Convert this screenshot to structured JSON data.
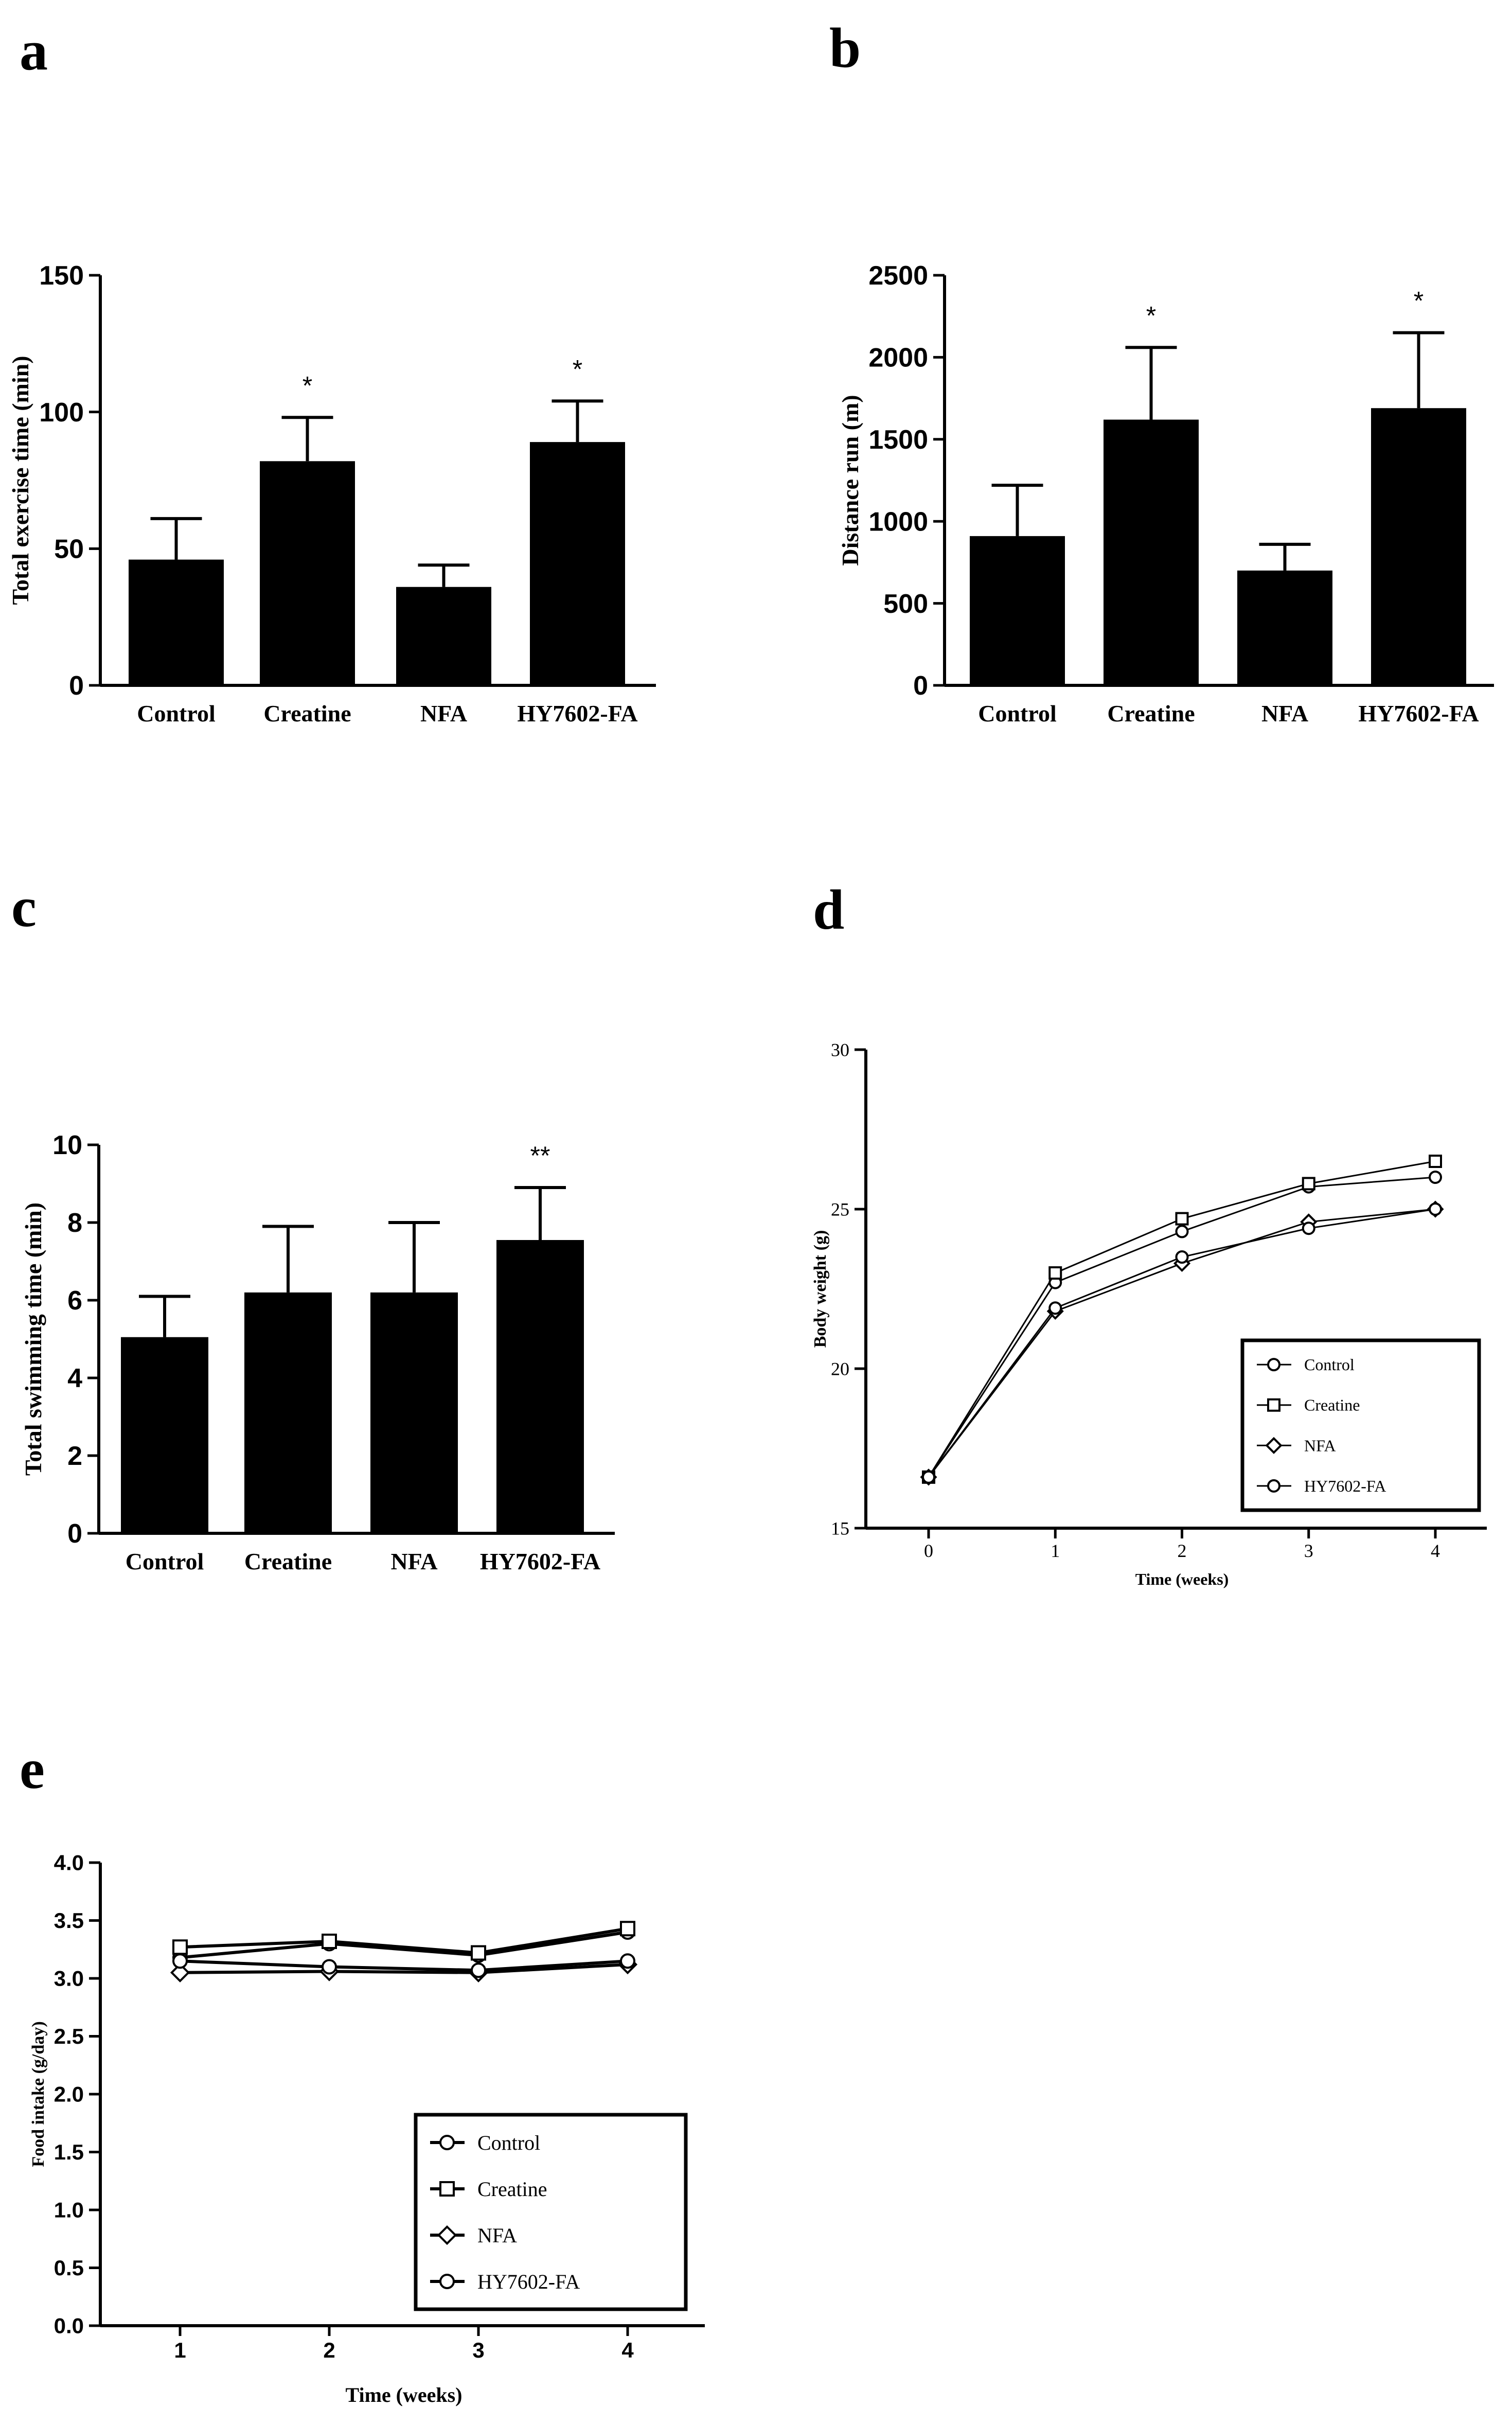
{
  "figure": {
    "panels": [
      "a",
      "b",
      "c",
      "d",
      "e"
    ]
  },
  "chart_data": [
    {
      "id": "a",
      "panel_label": "a",
      "type": "bar",
      "title": "",
      "xlabel": "",
      "ylabel": "Total exercise time (min)",
      "categories": [
        "Control",
        "Creatine",
        "NFA",
        "HY7602-FA"
      ],
      "values": [
        46,
        82,
        36,
        89
      ],
      "errors": [
        15,
        16,
        8,
        15
      ],
      "significance": [
        "",
        "*",
        "",
        "*"
      ],
      "ylim": [
        0,
        150
      ],
      "yticks": [
        "0",
        "50",
        "100",
        "150"
      ]
    },
    {
      "id": "b",
      "panel_label": "b",
      "type": "bar",
      "title": "",
      "xlabel": "",
      "ylabel": "Distance run (m)",
      "categories": [
        "Control",
        "Creatine",
        "NFA",
        "HY7602-FA"
      ],
      "values": [
        910,
        1620,
        700,
        1690
      ],
      "errors": [
        310,
        440,
        160,
        460
      ],
      "significance": [
        "",
        "*",
        "",
        "*"
      ],
      "ylim": [
        0,
        2500
      ],
      "yticks": [
        "0",
        "500",
        "1000",
        "1500",
        "2000",
        "2500"
      ]
    },
    {
      "id": "c",
      "panel_label": "c",
      "type": "bar",
      "title": "",
      "xlabel": "",
      "ylabel": "Total swimming time (min)",
      "categories": [
        "Control",
        "Creatine",
        "NFA",
        "HY7602-FA"
      ],
      "values": [
        5.05,
        6.2,
        6.2,
        7.55
      ],
      "errors": [
        1.05,
        1.7,
        1.8,
        1.35
      ],
      "significance": [
        "",
        "",
        "",
        "**"
      ],
      "ylim": [
        0,
        10
      ],
      "yticks": [
        "0",
        "2",
        "4",
        "6",
        "8",
        "10"
      ]
    },
    {
      "id": "d",
      "panel_label": "d",
      "type": "line",
      "title": "",
      "xlabel": "Time (weeks)",
      "ylabel": "Body weight (g)",
      "x": [
        0,
        1,
        2,
        3,
        4
      ],
      "xticks": [
        "0",
        "1",
        "2",
        "3",
        "4"
      ],
      "ylim": [
        15,
        30
      ],
      "yticks": [
        "15",
        "20",
        "25",
        "30"
      ],
      "legend_position": "lower-right",
      "series": [
        {
          "name": "Control",
          "marker": "circle",
          "values": [
            16.6,
            22.7,
            24.3,
            25.7,
            26.0
          ]
        },
        {
          "name": "Creatine",
          "marker": "square",
          "values": [
            16.6,
            23.0,
            24.7,
            25.8,
            26.5
          ]
        },
        {
          "name": "NFA",
          "marker": "diamond",
          "values": [
            16.6,
            21.8,
            23.3,
            24.6,
            25.0
          ]
        },
        {
          "name": "HY7602-FA",
          "marker": "circle",
          "values": [
            16.6,
            21.9,
            23.5,
            24.4,
            25.0
          ]
        }
      ]
    },
    {
      "id": "e",
      "panel_label": "e",
      "type": "line",
      "title": "",
      "xlabel": "Time (weeks)",
      "ylabel": "Food intake (g/day)",
      "x": [
        1,
        2,
        3,
        4
      ],
      "xticks": [
        "1",
        "2",
        "3",
        "4"
      ],
      "ylim": [
        0,
        4
      ],
      "yticks": [
        "0.0",
        "0.5",
        "1.0",
        "1.5",
        "2.0",
        "2.5",
        "3.0",
        "3.5",
        "4.0"
      ],
      "legend_position": "lower-right",
      "series": [
        {
          "name": "Control",
          "marker": "circle",
          "values": [
            3.18,
            3.3,
            3.2,
            3.4
          ]
        },
        {
          "name": "Creatine",
          "marker": "square",
          "values": [
            3.27,
            3.32,
            3.22,
            3.43
          ]
        },
        {
          "name": "NFA",
          "marker": "diamond",
          "values": [
            3.05,
            3.06,
            3.05,
            3.12
          ]
        },
        {
          "name": "HY7602-FA",
          "marker": "circle",
          "values": [
            3.15,
            3.1,
            3.07,
            3.15
          ]
        }
      ]
    }
  ]
}
